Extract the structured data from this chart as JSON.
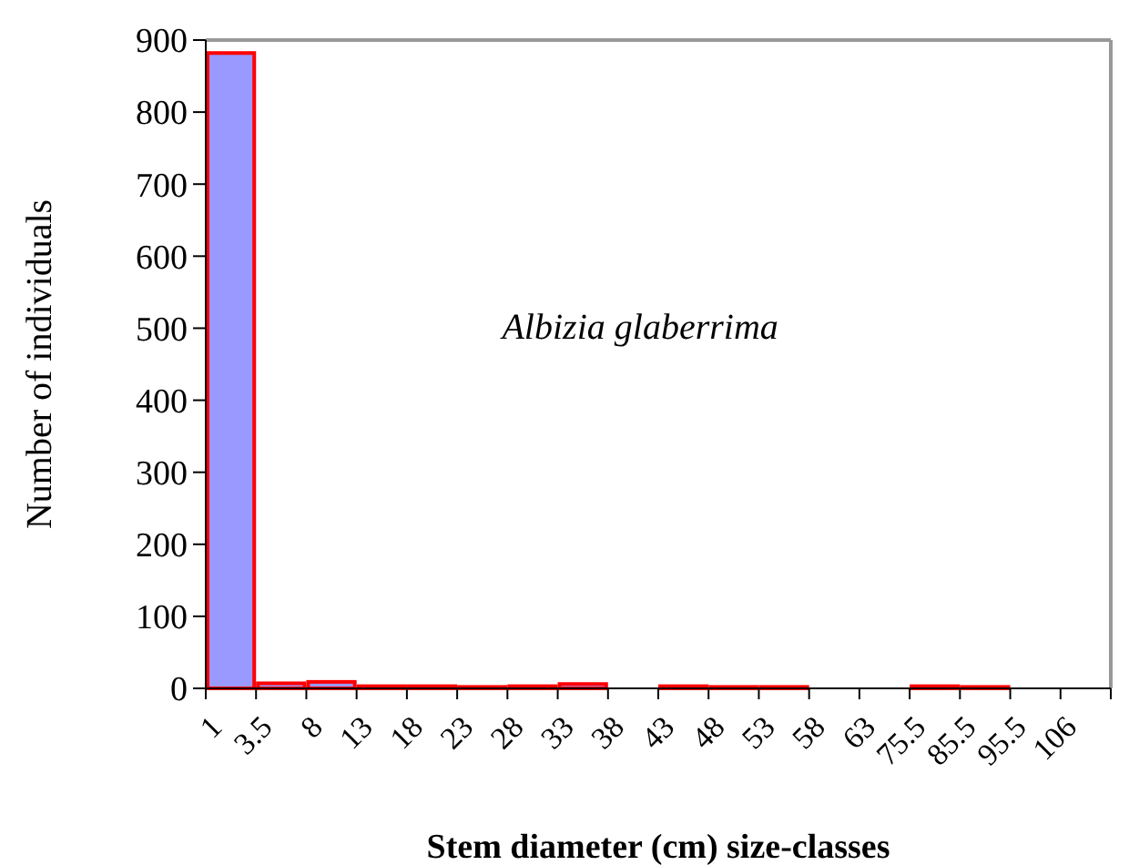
{
  "chart_data": {
    "type": "bar",
    "xlabel": "Stem diameter (cm) size-classes",
    "ylabel": "Number of individuals",
    "categories": [
      "1",
      "3.5",
      "8",
      "13",
      "18",
      "23",
      "28",
      "33",
      "38",
      "43",
      "48",
      "53",
      "58",
      "63",
      "75.5",
      "85.5",
      "95.5",
      "106"
    ],
    "values": [
      882,
      7,
      9,
      3,
      3,
      2,
      3,
      6,
      0,
      3,
      2,
      2,
      0,
      0,
      3,
      2,
      0,
      0
    ],
    "color": "#9999ff",
    "ylim": [
      0,
      900
    ],
    "yticks": [
      0,
      100,
      200,
      300,
      400,
      500,
      600,
      700,
      800,
      900
    ],
    "annotations": [
      "Albizia glaberrima"
    ]
  }
}
